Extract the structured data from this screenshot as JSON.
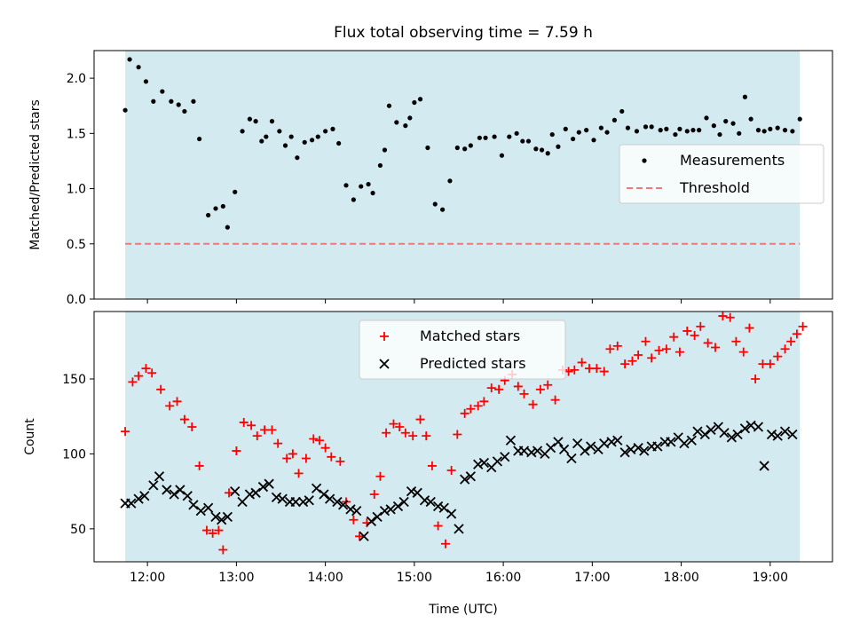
{
  "chart_data": [
    {
      "type": "scatter",
      "title": "Flux total observing time = 7.59 h",
      "xlabel": "",
      "ylabel": "Matched/Predicted stars",
      "xlim": [
        "11:24",
        "19:42"
      ],
      "ylim": [
        0,
        2.25
      ],
      "yticks": [
        "0.0",
        "0.5",
        "1.0",
        "1.5",
        "2.0"
      ],
      "ytick_values": [
        0,
        0.5,
        1.0,
        1.5,
        2.0
      ],
      "x_ticks": [
        "12:00",
        "13:00",
        "14:00",
        "15:00",
        "16:00",
        "17:00",
        "18:00",
        "19:00"
      ],
      "x_tick_values": [
        "12:00",
        "13:00",
        "14:00",
        "15:00",
        "16:00",
        "17:00",
        "18:00",
        "19:00"
      ],
      "observing_window": [
        "11:45",
        "19:20"
      ],
      "legend_position": "center-right",
      "series": [
        {
          "name": "Measurements",
          "marker": "dot",
          "color": "#000000",
          "x": [
            "11:45",
            "11:48",
            "11:54",
            "11:59",
            "12:04",
            "12:10",
            "12:16",
            "12:21",
            "12:25",
            "12:31",
            "12:35",
            "12:41",
            "12:46",
            "12:51",
            "12:54",
            "12:59",
            "13:04",
            "13:09",
            "13:13",
            "13:17",
            "13:20",
            "13:24",
            "13:29",
            "13:33",
            "13:37",
            "13:41",
            "13:46",
            "13:51",
            "13:55",
            "14:00",
            "14:05",
            "14:09",
            "14:14",
            "14:19",
            "14:24",
            "14:29",
            "14:32",
            "14:37",
            "14:40",
            "14:43",
            "14:48",
            "14:54",
            "14:57",
            "15:00",
            "15:04",
            "15:09",
            "15:14",
            "15:19",
            "15:24",
            "15:29",
            "15:34",
            "15:38",
            "15:44",
            "15:48",
            "15:54",
            "15:59",
            "16:04",
            "16:09",
            "16:13",
            "16:17",
            "16:22",
            "16:26",
            "16:30",
            "16:33",
            "16:37",
            "16:42",
            "16:47",
            "16:51",
            "16:56",
            "17:01",
            "17:06",
            "17:10",
            "17:15",
            "17:20",
            "17:24",
            "17:30",
            "17:36",
            "17:40",
            "17:46",
            "17:50",
            "17:56",
            "17:59",
            "18:04",
            "18:08",
            "18:12",
            "18:17",
            "18:22",
            "18:26",
            "18:30",
            "18:35",
            "18:39",
            "18:43",
            "18:47",
            "18:52",
            "18:56",
            "19:00",
            "19:05",
            "19:10",
            "19:15",
            "19:20"
          ],
          "values": [
            1.71,
            2.17,
            2.1,
            1.97,
            1.79,
            1.88,
            1.79,
            1.76,
            1.7,
            1.79,
            1.45,
            0.76,
            0.82,
            0.84,
            0.65,
            0.97,
            1.52,
            1.63,
            1.61,
            1.43,
            1.47,
            1.61,
            1.52,
            1.39,
            1.47,
            1.28,
            1.42,
            1.44,
            1.47,
            1.52,
            1.54,
            1.41,
            1.03,
            0.9,
            1.02,
            1.04,
            0.96,
            1.21,
            1.35,
            1.75,
            1.6,
            1.57,
            1.64,
            1.78,
            1.81,
            1.37,
            0.86,
            0.81,
            1.07,
            1.37,
            1.36,
            1.39,
            1.46,
            1.46,
            1.47,
            1.3,
            1.47,
            1.5,
            1.43,
            1.43,
            1.36,
            1.35,
            1.32,
            1.49,
            1.38,
            1.54,
            1.45,
            1.51,
            1.53,
            1.44,
            1.55,
            1.51,
            1.62,
            1.7,
            1.55,
            1.52,
            1.56,
            1.56,
            1.53,
            1.54,
            1.49,
            1.54,
            1.52,
            1.53,
            1.53,
            1.64,
            1.57,
            1.49,
            1.61,
            1.59,
            1.5,
            1.83,
            1.63,
            1.53,
            1.52,
            1.54,
            1.55,
            1.53,
            1.52,
            1.63
          ]
        },
        {
          "name": "Threshold",
          "marker": "dashed-line",
          "color": "#f07878",
          "x": [
            "11:45",
            "19:20"
          ],
          "values": [
            0.5,
            0.5
          ]
        }
      ]
    },
    {
      "type": "scatter",
      "title": "",
      "xlabel": "Time (UTC)",
      "ylabel": "Count",
      "xlim": [
        "11:24",
        "19:42"
      ],
      "ylim": [
        28,
        195
      ],
      "yticks": [
        "50",
        "100",
        "150"
      ],
      "ytick_values": [
        50,
        100,
        150
      ],
      "x_ticks": [
        "12:00",
        "13:00",
        "14:00",
        "15:00",
        "16:00",
        "17:00",
        "18:00",
        "19:00"
      ],
      "x_tick_values": [
        "12:00",
        "13:00",
        "14:00",
        "15:00",
        "16:00",
        "17:00",
        "18:00",
        "19:00"
      ],
      "observing_window": [
        "11:45",
        "19:20"
      ],
      "legend_position": "top-center",
      "series": [
        {
          "name": "Matched stars",
          "marker": "plus",
          "color": "#ff0000",
          "x": [
            "11:45",
            "11:50",
            "11:54",
            "11:59",
            "12:03",
            "12:09",
            "12:15",
            "12:20",
            "12:25",
            "12:30",
            "12:35",
            "12:40",
            "12:44",
            "12:48",
            "12:51",
            "12:55",
            "13:00",
            "13:05",
            "13:10",
            "13:14",
            "13:19",
            "13:24",
            "13:28",
            "13:34",
            "13:38",
            "13:42",
            "13:47",
            "13:52",
            "13:56",
            "14:00",
            "14:04",
            "14:10",
            "14:14",
            "14:19",
            "14:23",
            "14:28",
            "14:33",
            "14:37",
            "14:41",
            "14:46",
            "14:50",
            "14:54",
            "14:59",
            "15:04",
            "15:08",
            "15:12",
            "15:16",
            "15:21",
            "15:25",
            "15:29",
            "15:34",
            "15:38",
            "15:43",
            "15:47",
            "15:52",
            "15:57",
            "16:01",
            "16:06",
            "16:10",
            "16:14",
            "16:20",
            "16:25",
            "16:30",
            "16:35",
            "16:40",
            "16:44",
            "16:48",
            "16:53",
            "16:58",
            "17:03",
            "17:08",
            "17:12",
            "17:17",
            "17:22",
            "17:27",
            "17:31",
            "17:36",
            "17:40",
            "17:45",
            "17:50",
            "17:55",
            "17:59",
            "18:04",
            "18:09",
            "18:13",
            "18:18",
            "18:23",
            "18:28",
            "18:33",
            "18:37",
            "18:42",
            "18:46",
            "18:50",
            "18:55",
            "19:00",
            "19:05",
            "19:10",
            "19:14",
            "19:18",
            "19:22"
          ],
          "values": [
            115,
            148,
            152,
            157,
            154,
            143,
            132,
            135,
            123,
            118,
            92,
            49,
            47,
            49,
            36,
            74,
            102,
            121,
            119,
            112,
            116,
            116,
            107,
            97,
            100,
            87,
            97,
            110,
            109,
            104,
            98,
            95,
            68,
            56,
            45,
            54,
            73,
            85,
            114,
            120,
            118,
            114,
            112,
            123,
            112,
            92,
            52,
            40,
            89,
            113,
            127,
            130,
            132,
            135,
            144,
            143,
            149,
            153,
            145,
            140,
            133,
            143,
            146,
            136,
            156,
            155,
            156,
            161,
            157,
            157,
            155,
            170,
            172,
            160,
            162,
            166,
            175,
            164,
            169,
            170,
            178,
            168,
            182,
            179,
            185,
            174,
            171,
            192,
            191,
            175,
            168,
            184,
            150,
            160,
            160,
            165,
            170,
            175,
            180,
            185
          ]
        },
        {
          "name": "Predicted stars",
          "marker": "x",
          "color": "#000000",
          "x": [
            "11:45",
            "11:49",
            "11:54",
            "11:58",
            "12:04",
            "12:08",
            "12:13",
            "12:18",
            "12:22",
            "12:27",
            "12:31",
            "12:36",
            "12:41",
            "12:46",
            "12:50",
            "12:54",
            "12:59",
            "13:04",
            "13:09",
            "13:13",
            "13:18",
            "13:22",
            "13:27",
            "13:31",
            "13:36",
            "13:40",
            "13:45",
            "13:49",
            "13:54",
            "13:59",
            "14:03",
            "14:08",
            "14:12",
            "14:17",
            "14:21",
            "14:26",
            "14:31",
            "14:35",
            "14:40",
            "14:44",
            "14:49",
            "14:53",
            "14:58",
            "15:02",
            "15:07",
            "15:11",
            "15:16",
            "15:20",
            "15:25",
            "15:30",
            "15:34",
            "15:38",
            "15:43",
            "15:47",
            "15:52",
            "15:56",
            "16:01",
            "16:05",
            "16:10",
            "16:14",
            "16:19",
            "16:23",
            "16:28",
            "16:32",
            "16:37",
            "16:41",
            "16:46",
            "16:50",
            "16:55",
            "16:59",
            "17:04",
            "17:08",
            "17:13",
            "17:17",
            "17:22",
            "17:26",
            "17:31",
            "17:35",
            "17:40",
            "17:44",
            "17:49",
            "17:53",
            "17:58",
            "18:02",
            "18:07",
            "18:11",
            "18:16",
            "18:20",
            "18:25",
            "18:29",
            "18:34",
            "18:38",
            "18:43",
            "18:47",
            "18:52",
            "18:56",
            "19:01",
            "19:05",
            "19:10",
            "19:15"
          ],
          "values": [
            67,
            67,
            70,
            72,
            79,
            85,
            76,
            73,
            76,
            72,
            66,
            62,
            64,
            58,
            56,
            58,
            75,
            68,
            73,
            74,
            78,
            80,
            71,
            70,
            68,
            68,
            68,
            69,
            77,
            73,
            70,
            68,
            66,
            63,
            62,
            45,
            55,
            58,
            62,
            63,
            65,
            68,
            75,
            74,
            69,
            68,
            65,
            64,
            60,
            50,
            83,
            85,
            93,
            94,
            91,
            95,
            98,
            109,
            102,
            102,
            101,
            102,
            100,
            104,
            108,
            103,
            97,
            107,
            102,
            105,
            103,
            107,
            108,
            109,
            101,
            103,
            104,
            102,
            105,
            105,
            108,
            108,
            111,
            107,
            109,
            115,
            113,
            116,
            118,
            114,
            111,
            113,
            117,
            119,
            118,
            92,
            113,
            112,
            115,
            113
          ]
        }
      ]
    }
  ],
  "colors": {
    "window_fill": "#d3eaf1",
    "axis": "#000000"
  }
}
